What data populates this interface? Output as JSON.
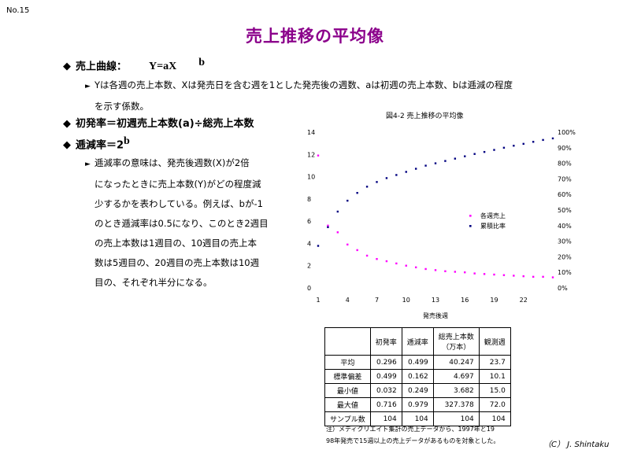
{
  "slide_number": "No.15",
  "title": "売上推移の平均像",
  "bullets": {
    "curve_label": "売上曲線：",
    "curve_formula": "Y=aX",
    "curve_exponent": "b",
    "curve_desc_line1": "Yは各週の売上本数、Xは発売日を含む週を1とした発売後の週数、aは初週の売上本数、bは逓減の程度",
    "curve_desc_line2": "を示す係数。",
    "first_rate": "初発率＝初週売上本数(a)÷総売上本数",
    "decay_label": "逓減率＝2",
    "decay_exponent": "b",
    "decay_desc": [
      "逓減率の意味は、発売後週数(X)が2倍",
      "になったときに売上本数(Y)がどの程度減",
      "少するかを表わしている。例えば、bが-1",
      "のとき逓減率は0.5になり、このとき2週目",
      "の売上本数は1週目の、10週目の売上本",
      "数は5週目の、20週目の売上本数は10週",
      "目の、それぞれ半分になる。"
    ]
  },
  "chart_data": {
    "type": "scatter",
    "title": "図4-2  売上推移の平均像",
    "xlabel": "発売後週",
    "x_ticks": [
      "1",
      "4",
      "7",
      "10",
      "13",
      "16",
      "19",
      "22"
    ],
    "x_range": [
      1,
      25
    ],
    "y_left_ticks": [
      "0",
      "2",
      "4",
      "6",
      "8",
      "10",
      "12",
      "14"
    ],
    "y_left_range": [
      0,
      14
    ],
    "y_right_ticks": [
      "0%",
      "10%",
      "20%",
      "30%",
      "40%",
      "50%",
      "60%",
      "70%",
      "80%",
      "90%",
      "100%"
    ],
    "y_right_range": [
      0,
      100
    ],
    "legend_position": "right-middle",
    "colors": {
      "weekly": "#FF00FF",
      "cumulative": "#000080"
    },
    "series": [
      {
        "name": "各週売上",
        "axis": "left",
        "x": [
          1,
          2,
          3,
          4,
          5,
          6,
          7,
          8,
          9,
          10,
          11,
          12,
          13,
          14,
          15,
          16,
          17,
          18,
          19,
          20,
          21,
          22,
          23,
          24,
          25
        ],
        "values": [
          11.9,
          5.6,
          5.0,
          3.9,
          3.4,
          2.9,
          2.6,
          2.4,
          2.2,
          2.0,
          1.85,
          1.7,
          1.6,
          1.5,
          1.45,
          1.4,
          1.3,
          1.25,
          1.2,
          1.15,
          1.1,
          1.05,
          1.0,
          1.0,
          0.95
        ]
      },
      {
        "name": "累積比率",
        "axis": "right",
        "x": [
          1,
          2,
          3,
          4,
          5,
          6,
          7,
          8,
          9,
          10,
          11,
          12,
          13,
          14,
          15,
          16,
          17,
          18,
          19,
          20,
          21,
          22,
          23,
          24,
          25
        ],
        "values": [
          27,
          39,
          49,
          56,
          61,
          65,
          68,
          70.5,
          72.5,
          74.5,
          76.5,
          78.5,
          80,
          81.5,
          83,
          84.5,
          86,
          87.3,
          88.6,
          90,
          91.3,
          92.5,
          93.8,
          95,
          96
        ]
      }
    ]
  },
  "stats_table": {
    "headers": [
      "",
      "初発率",
      "逓減率",
      "総売上本数\n（万本）",
      "観測週"
    ],
    "rows": [
      [
        "平均",
        "0.296",
        "0.499",
        "40.247",
        "23.7"
      ],
      [
        "標準偏差",
        "0.499",
        "0.162",
        "4.697",
        "10.1"
      ],
      [
        "最小値",
        "0.032",
        "0.249",
        "3.682",
        "15.0"
      ],
      [
        "最大値",
        "0.716",
        "0.979",
        "327.378",
        "72.0"
      ],
      [
        "サンプル数",
        "104",
        "104",
        "104",
        "104"
      ]
    ]
  },
  "note_line1": "注）メディクリエイト集計の売上データから、1997年と19",
  "note_line2": "98年発売で15週以上の売上データがあるものを対象とした。",
  "copyright": "（C） J. Shintaku"
}
